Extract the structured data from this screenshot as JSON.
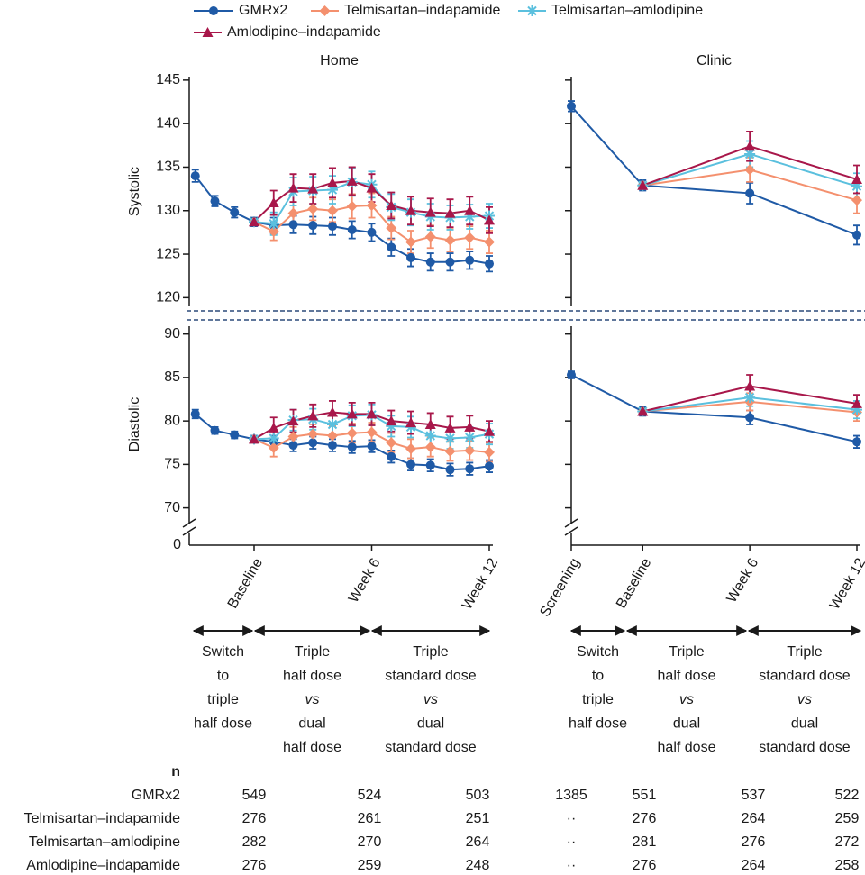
{
  "chart_data": [
    {
      "type": "line",
      "title": "Home",
      "y_label": "Systolic",
      "x": [
        -3,
        -2,
        -1,
        0,
        1,
        2,
        3,
        4,
        5,
        6,
        7,
        8,
        9,
        10,
        11,
        12
      ],
      "xlim": [
        -3.31,
        12
      ],
      "ylim": [
        119,
        145.4
      ],
      "yticks": [
        120,
        125,
        130,
        135,
        140,
        145
      ],
      "series": [
        {
          "name": "GMRx2",
          "color": "#1f5aa6",
          "marker": "circle",
          "values": [
            134.0,
            131.1,
            129.8,
            128.7,
            128.3,
            128.4,
            128.3,
            128.2,
            127.8,
            127.5,
            125.8,
            124.6,
            124.1,
            124.1,
            124.3,
            123.9
          ],
          "errors": [
            0.7,
            0.6,
            0.6,
            0.5,
            0.9,
            1.0,
            1.0,
            1.0,
            1.0,
            1.0,
            1.0,
            1.0,
            1.0,
            1.0,
            1.0,
            0.9
          ]
        },
        {
          "name": "Telmisartan–indapamide",
          "color": "#f4906e",
          "marker": "diamond",
          "values": [
            null,
            null,
            null,
            128.7,
            127.6,
            129.7,
            130.2,
            130.0,
            130.5,
            130.6,
            128.0,
            126.4,
            127.0,
            126.6,
            126.9,
            126.4
          ],
          "errors": [
            null,
            null,
            null,
            null,
            1.0,
            1.3,
            1.3,
            1.3,
            1.4,
            1.4,
            1.3,
            1.3,
            1.3,
            1.3,
            1.3,
            1.3
          ]
        },
        {
          "name": "Telmisartan–amlodipine",
          "color": "#5bc0de",
          "marker": "asterisk",
          "values": [
            null,
            null,
            null,
            128.7,
            128.5,
            132.2,
            132.3,
            132.4,
            133.3,
            133.0,
            130.4,
            129.8,
            129.3,
            129.2,
            129.3,
            129.4
          ],
          "errors": [
            null,
            null,
            null,
            null,
            1.3,
            1.6,
            1.6,
            1.6,
            1.6,
            1.5,
            1.5,
            1.5,
            1.5,
            1.4,
            1.4,
            1.4
          ]
        },
        {
          "name": "Amlodipine–indapamide",
          "color": "#a8174a",
          "marker": "triangle",
          "values": [
            null,
            null,
            null,
            128.7,
            130.9,
            132.6,
            132.5,
            133.2,
            133.4,
            132.6,
            130.6,
            130.0,
            129.8,
            129.7,
            130.0,
            128.9
          ],
          "errors": [
            null,
            null,
            null,
            null,
            1.4,
            1.6,
            1.7,
            1.7,
            1.6,
            1.6,
            1.5,
            1.6,
            1.6,
            1.6,
            1.6,
            1.5
          ]
        }
      ]
    },
    {
      "type": "line",
      "y_label": "Diastolic",
      "x": [
        -3,
        -2,
        -1,
        0,
        1,
        2,
        3,
        4,
        5,
        6,
        7,
        8,
        9,
        10,
        11,
        12
      ],
      "xlim": [
        -3.31,
        12
      ],
      "xticks": [
        {
          "value": 0,
          "label": "Baseline"
        },
        {
          "value": 6,
          "label": "Week 6"
        },
        {
          "value": 12,
          "label": "Week 12"
        }
      ],
      "ylim": [
        68.3,
        90.9
      ],
      "yticks": [
        70,
        75,
        80,
        85,
        90
      ],
      "axis_zero_label": 0,
      "series": [
        {
          "color": "#1f5aa6",
          "marker": "circle",
          "values": [
            80.8,
            78.9,
            78.4,
            77.9,
            77.6,
            77.2,
            77.5,
            77.2,
            77.0,
            77.1,
            75.9,
            75.0,
            74.9,
            74.4,
            74.5,
            74.8
          ],
          "errors": [
            0.5,
            0.4,
            0.4,
            0.4,
            0.7,
            0.7,
            0.7,
            0.7,
            0.7,
            0.7,
            0.7,
            0.7,
            0.7,
            0.7,
            0.7,
            0.7
          ]
        },
        {
          "color": "#f4906e",
          "marker": "diamond",
          "values": [
            null,
            null,
            null,
            77.9,
            76.9,
            78.2,
            78.5,
            78.3,
            78.6,
            78.7,
            77.5,
            76.8,
            77.0,
            76.5,
            76.6,
            76.4
          ],
          "errors": [
            null,
            null,
            null,
            null,
            1.0,
            1.1,
            1.1,
            1.1,
            1.1,
            1.1,
            1.1,
            1.1,
            1.1,
            1.1,
            1.1,
            1.1
          ]
        },
        {
          "color": "#5bc0de",
          "marker": "asterisk",
          "values": [
            null,
            null,
            null,
            77.9,
            78.0,
            80.1,
            80.2,
            79.6,
            80.6,
            80.7,
            79.4,
            79.3,
            78.3,
            78.0,
            78.1,
            78.5
          ],
          "errors": [
            null,
            null,
            null,
            null,
            1.0,
            1.2,
            1.2,
            1.2,
            1.2,
            1.2,
            1.2,
            1.2,
            1.2,
            1.2,
            1.2,
            1.2
          ]
        },
        {
          "color": "#a8174a",
          "marker": "triangle",
          "values": [
            null,
            null,
            null,
            77.9,
            79.2,
            80.0,
            80.6,
            81.0,
            80.8,
            80.8,
            80.0,
            79.8,
            79.6,
            79.2,
            79.3,
            78.8
          ],
          "errors": [
            null,
            null,
            null,
            null,
            1.2,
            1.3,
            1.3,
            1.3,
            1.3,
            1.3,
            1.2,
            1.3,
            1.3,
            1.3,
            1.3,
            1.2
          ]
        }
      ]
    },
    {
      "type": "line",
      "title": "Clinic",
      "x": [
        -4,
        0,
        6,
        12
      ],
      "xlim": [
        -4,
        12
      ],
      "ylim": [
        119,
        145.4
      ],
      "yticks": [
        120,
        125,
        130,
        135,
        140,
        145
      ],
      "ytick_labels": false,
      "series": [
        {
          "color": "#1f5aa6",
          "marker": "circle",
          "values": [
            142.0,
            132.9,
            132.0,
            127.2
          ],
          "errors": [
            0.6,
            0.6,
            1.2,
            1.1
          ]
        },
        {
          "color": "#f4906e",
          "marker": "diamond",
          "values": [
            null,
            132.9,
            134.7,
            131.2
          ],
          "errors": [
            null,
            null,
            1.4,
            1.5
          ]
        },
        {
          "color": "#5bc0de",
          "marker": "asterisk",
          "values": [
            null,
            132.9,
            136.5,
            132.8
          ],
          "errors": [
            null,
            null,
            1.5,
            1.5
          ]
        },
        {
          "color": "#a8174a",
          "marker": "triangle",
          "values": [
            null,
            132.9,
            137.4,
            133.6
          ],
          "errors": [
            null,
            null,
            1.7,
            1.6
          ]
        }
      ]
    },
    {
      "type": "line",
      "x": [
        -4,
        0,
        6,
        12
      ],
      "xlim": [
        -4,
        12
      ],
      "xticks": [
        {
          "value": -4,
          "label": "Screening"
        },
        {
          "value": 0,
          "label": "Baseline"
        },
        {
          "value": 6,
          "label": "Week 6"
        },
        {
          "value": 12,
          "label": "Week 12"
        }
      ],
      "ylim": [
        68.3,
        90.9
      ],
      "yticks": [
        70,
        75,
        80,
        85,
        90
      ],
      "ytick_labels": false,
      "series": [
        {
          "color": "#1f5aa6",
          "marker": "circle",
          "values": [
            85.3,
            81.1,
            80.4,
            77.6
          ],
          "errors": [
            0.4,
            0.5,
            0.8,
            0.7
          ]
        },
        {
          "color": "#f4906e",
          "marker": "diamond",
          "values": [
            null,
            81.1,
            82.2,
            81.0
          ],
          "errors": [
            null,
            null,
            1.0,
            1.0
          ]
        },
        {
          "color": "#5bc0de",
          "marker": "asterisk",
          "values": [
            null,
            81.1,
            82.7,
            81.3
          ],
          "errors": [
            null,
            null,
            1.0,
            1.0
          ]
        },
        {
          "color": "#a8174a",
          "marker": "triangle",
          "values": [
            null,
            81.1,
            84.0,
            82.0
          ],
          "errors": [
            null,
            null,
            1.3,
            1.0
          ]
        }
      ]
    }
  ],
  "phases": {
    "home": [
      [
        "Switch",
        "to",
        "triple",
        "half dose"
      ],
      [
        "Triple",
        "half dose",
        "vs",
        "dual",
        "half dose"
      ],
      [
        "Triple",
        "standard dose",
        "vs",
        "dual",
        "standard dose"
      ]
    ],
    "clinic": [
      [
        "Switch",
        "to",
        "triple",
        "half dose"
      ],
      [
        "Triple",
        "half dose",
        "vs",
        "dual",
        "half dose"
      ],
      [
        "Triple",
        "standard dose",
        "vs",
        "dual",
        "standard dose"
      ]
    ]
  },
  "n_table": {
    "header": "n",
    "rows": [
      {
        "label": "GMRx2",
        "values": [
          549,
          524,
          503,
          1385,
          551,
          537,
          522
        ]
      },
      {
        "label": "Telmisartan–indapamide",
        "values": [
          276,
          261,
          251,
          "··",
          276,
          264,
          259
        ]
      },
      {
        "label": "Telmisartan–amlodipine",
        "values": [
          282,
          270,
          264,
          "··",
          281,
          276,
          272
        ]
      },
      {
        "label": "Amlodipine–indapamide",
        "values": [
          276,
          259,
          248,
          "··",
          276,
          264,
          258
        ]
      }
    ]
  }
}
